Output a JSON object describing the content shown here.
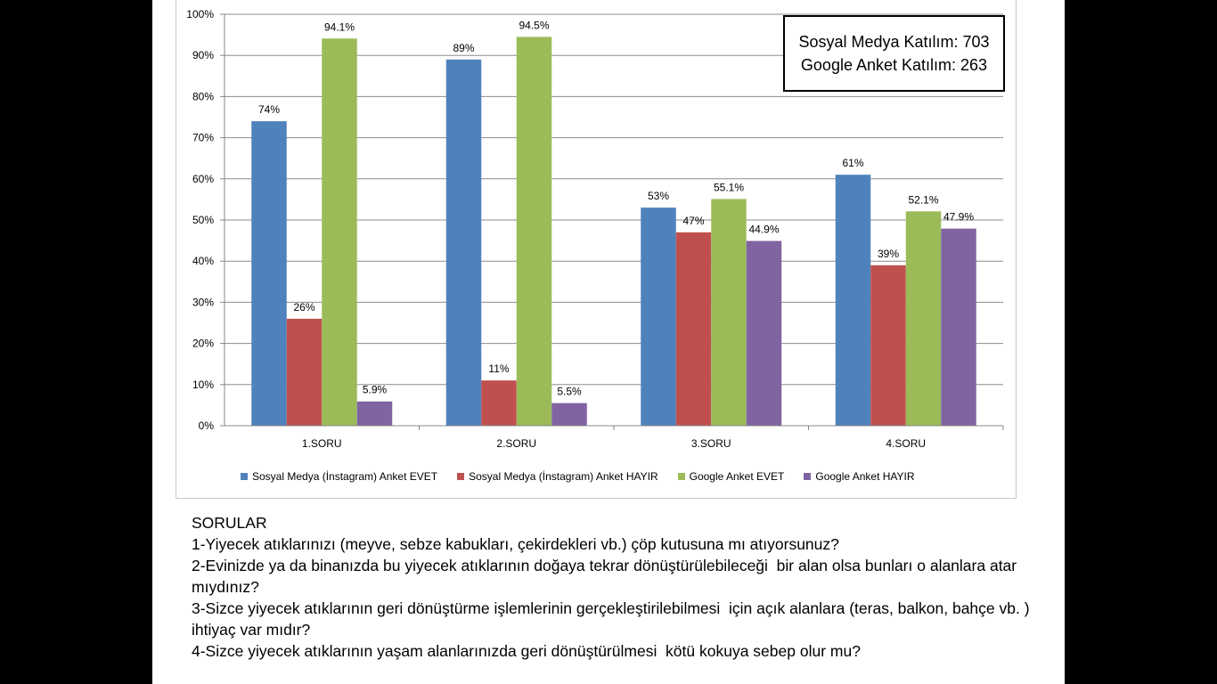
{
  "info_box": {
    "line1": "Sosyal Medya Katılım: 703",
    "line2": "Google Anket Katılım: 263"
  },
  "chart_data": {
    "type": "bar",
    "categories": [
      "1.SORU",
      "2.SORU",
      "3.SORU",
      "4.SORU"
    ],
    "series": [
      {
        "name": "Sosyal Medya (İnstagram) Anket EVET",
        "color": "#4f81bd",
        "values": [
          74,
          89,
          53,
          61
        ],
        "labels": [
          "74%",
          "89%",
          "53%",
          "61%"
        ]
      },
      {
        "name": "Sosyal Medya (İnstagram) Anket HAYIR",
        "color": "#c0504d",
        "values": [
          26,
          11,
          47,
          39
        ],
        "labels": [
          "26%",
          "11%",
          "47%",
          "39%"
        ]
      },
      {
        "name": "Google Anket EVET",
        "color": "#9bbb59",
        "values": [
          94.1,
          94.5,
          55.1,
          52.1
        ],
        "labels": [
          "94.1%",
          "94.5%",
          "55.1%",
          "52.1%"
        ]
      },
      {
        "name": "Google Anket HAYIR",
        "color": "#8064a2",
        "values": [
          5.9,
          5.5,
          44.9,
          47.9
        ],
        "labels": [
          "5.9%",
          "5.5%",
          "44.9%",
          "47.9%"
        ]
      }
    ],
    "ylim": [
      0,
      100
    ],
    "yticks": [
      "0%",
      "10%",
      "20%",
      "30%",
      "40%",
      "50%",
      "60%",
      "70%",
      "80%",
      "90%",
      "100%"
    ],
    "grid": true,
    "legend_position": "bottom"
  },
  "questions": {
    "heading": "SORULAR",
    "q1": "1-Yiyecek atıklarınızı (meyve, sebze kabukları, çekirdekleri vb.) çöp kutusuna mı atıyorsunuz?",
    "q2": "2-Evinizde ya da binanızda bu yiyecek atıklarının doğaya tekrar dönüştürülebileceği  bir alan olsa bunları o alanlara atar mıydınız?",
    "q3": "3-Sizce yiyecek atıklarının geri dönüştürme işlemlerinin gerçekleştirilebilmesi  için açık alanlara (teras, balkon, bahçe vb. ) ihtiyaç var mıdır?",
    "q4": "4-Sizce yiyecek atıklarının yaşam alanlarınızda geri dönüştürülmesi  kötü kokuya sebep olur mu?"
  }
}
